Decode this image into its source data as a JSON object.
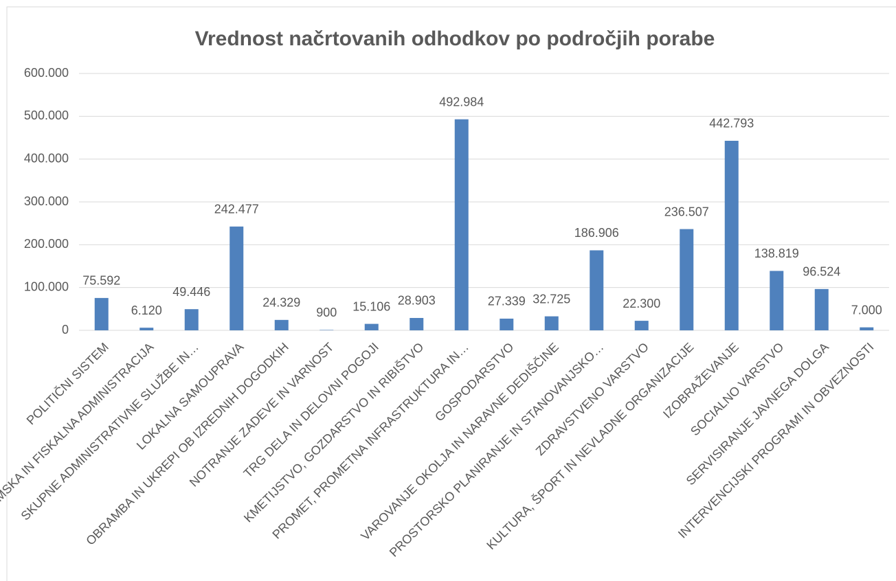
{
  "chart_data": {
    "type": "bar",
    "title": "Vrednost načrtovanih odhodkov po področjih porabe",
    "categories": [
      "POLITIČNI SISTEM",
      "EKONOMSKA IN FISKALNA ADMINISTRACIJA",
      "SKUPNE ADMINISTRATIVNE SLUŽBE IN…",
      "LOKALNA SAMOUPRAVA",
      "OBRAMBA IN UKREPI OB IZREDNIH DOGODKIH",
      "NOTRANJE ZADEVE IN VARNOST",
      "TRG DELA IN DELOVNI POGOJI",
      "KMETIJSTVO, GOZDARSTVO IN RIBIŠTVO",
      "PROMET, PROMETNA INFRASTRUKTURA IN…",
      "GOSPODARSTVO",
      "VAROVANJE OKOLJA IN NARAVNE DEDIŠČINE",
      "PROSTORSKO PLANIRANJE IN STANOVANJSKO…",
      "ZDRAVSTVENO VARSTVO",
      "KULTURA, ŠPORT IN NEVLADNE ORGANIZACIJE",
      "IZOBRAŽEVANJE",
      "SOCIALNO VARSTVO",
      "SERVISIRANJE JAVNEGA DOLGA",
      "INTERVENCIJSKI PROGRAMI IN OBVEZNOSTI"
    ],
    "values": [
      75592,
      6120,
      49446,
      242477,
      24329,
      900,
      15106,
      28903,
      492984,
      27339,
      32725,
      186906,
      22300,
      236507,
      442793,
      138819,
      96524,
      7000
    ],
    "value_labels": [
      "75.592",
      "6.120",
      "49.446",
      "242.477",
      "24.329",
      "900",
      "15.106",
      "28.903",
      "492.984",
      "27.339",
      "32.725",
      "186.906",
      "22.300",
      "236.507",
      "442.793",
      "138.819",
      "96.524",
      "7.000"
    ],
    "color": "#4f81bd",
    "ylim": [
      0,
      600000
    ],
    "yticks": [
      0,
      {
        "value": 100000,
        "label": "100.000"
      },
      {
        "value": 200000,
        "label": "200.000"
      },
      {
        "value": 300000,
        "label": "300.000"
      },
      {
        "value": 400000,
        "label": "400.000"
      },
      {
        "value": 500000,
        "label": "500.000"
      },
      {
        "value": 600000,
        "label": "600.000"
      }
    ],
    "grid": true
  }
}
